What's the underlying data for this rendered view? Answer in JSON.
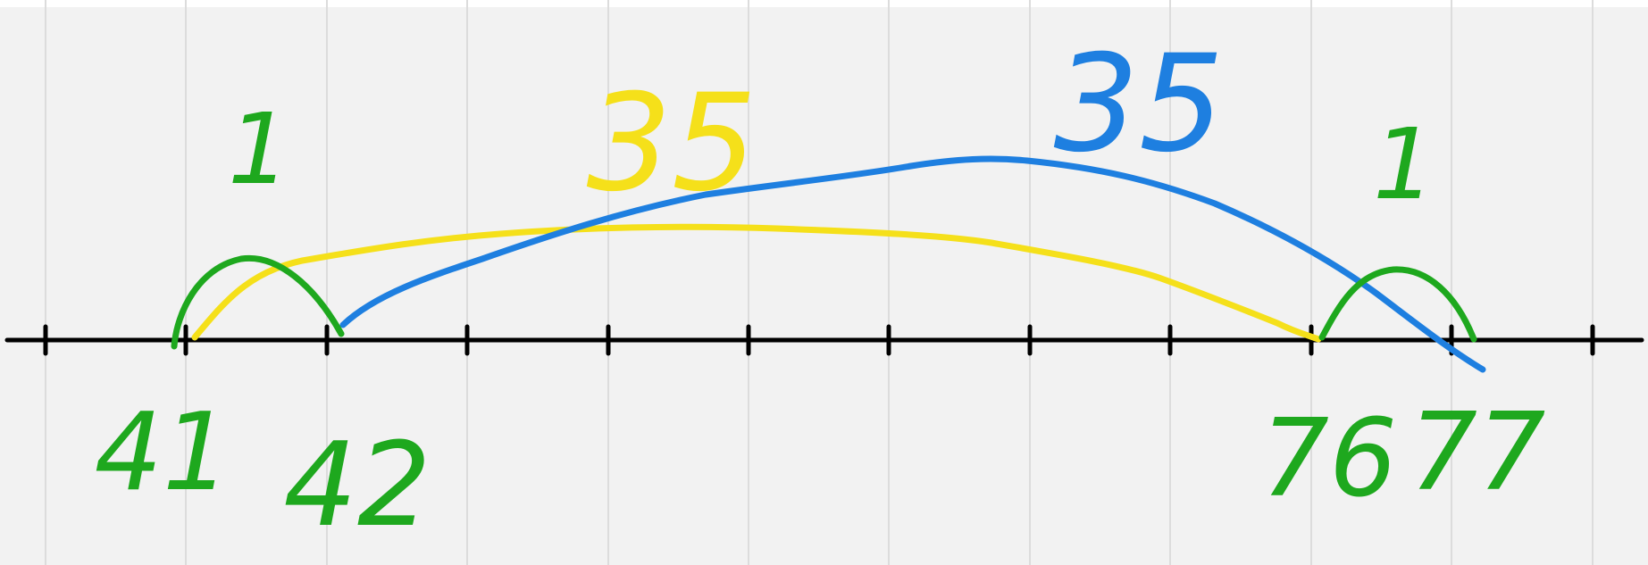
{
  "number_line": {
    "labels": [
      "41",
      "42",
      "76",
      "77"
    ]
  },
  "jumps": [
    {
      "from": "41",
      "to": "42",
      "size": "1",
      "color": "#1ea81e"
    },
    {
      "from": "42",
      "to": "77",
      "size": "35",
      "color": "#1e7fe0"
    },
    {
      "from": "41",
      "to": "76",
      "size": "35",
      "color": "#f5e01a"
    },
    {
      "from": "76",
      "to": "77",
      "size": "1",
      "color": "#1ea81e"
    }
  ],
  "colors": {
    "background": "#f2f2f2",
    "grid": "#dcdcdc",
    "axis": "#000000",
    "green": "#1ea81e",
    "blue": "#1e7fe0",
    "yellow": "#f5e01a"
  }
}
